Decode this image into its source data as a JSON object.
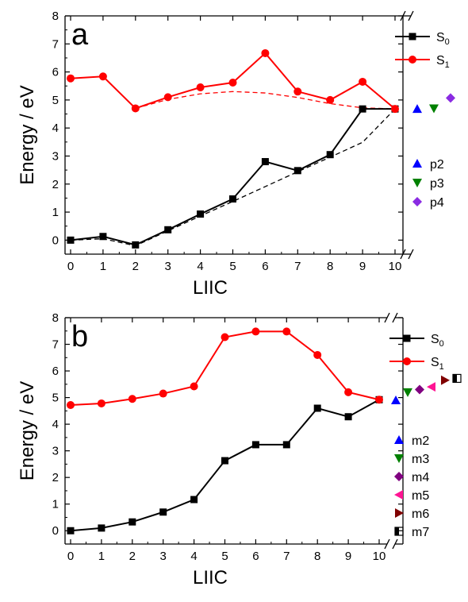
{
  "chart_data": [
    {
      "type": "line",
      "panel_label": "a",
      "xlabel": "LIIC",
      "ylabel": "Energy / eV",
      "ylim": [
        -0.5,
        8
      ],
      "xlim": [
        -0.3,
        10.3
      ],
      "x_ticks": [
        "0",
        "1",
        "2",
        "3",
        "4",
        "5",
        "6",
        "7",
        "8",
        "9",
        "10"
      ],
      "y_ticks": [
        "0",
        "1",
        "2",
        "3",
        "4",
        "5",
        "6",
        "7",
        "8"
      ],
      "axis_break": true,
      "grid": false,
      "legend_position": "top-right",
      "x": [
        0,
        1,
        2,
        3,
        4,
        5,
        6,
        7,
        8,
        9,
        10
      ],
      "series": [
        {
          "name": "S",
          "subscript": "0",
          "color": "#000000",
          "marker": "square",
          "values": [
            0.0,
            0.13,
            -0.17,
            0.37,
            0.93,
            1.47,
            2.8,
            2.48,
            3.05,
            4.68,
            4.68
          ]
        },
        {
          "name": "S",
          "subscript": "1",
          "color": "#ff0000",
          "marker": "circle",
          "values": [
            5.77,
            5.84,
            4.7,
            5.1,
            5.45,
            5.62,
            6.67,
            5.3,
            5.0,
            5.65,
            4.68
          ]
        }
      ],
      "fits": [
        {
          "color": "#000000",
          "x": [
            0,
            1,
            2,
            3,
            4,
            5,
            6,
            7,
            8,
            9,
            10
          ],
          "values": [
            0.0,
            0.05,
            -0.2,
            0.33,
            0.86,
            1.38,
            1.91,
            2.44,
            2.96,
            3.49,
            4.68
          ]
        },
        {
          "color": "#ff0000",
          "x": [
            2,
            3,
            4,
            5,
            6,
            7,
            8,
            9,
            10
          ],
          "values": [
            4.7,
            5.02,
            5.22,
            5.3,
            5.25,
            5.09,
            4.87,
            4.72,
            4.68
          ]
        }
      ],
      "extra_points": [
        {
          "name": "p2",
          "color": "#0000ff",
          "marker": "triangle-up",
          "value": 4.68
        },
        {
          "name": "p3",
          "color": "#008000",
          "marker": "triangle-down",
          "value": 4.7
        },
        {
          "name": "p4",
          "color": "#8a2be2",
          "marker": "diamond",
          "value": 5.07
        }
      ]
    },
    {
      "type": "line",
      "panel_label": "b",
      "xlabel": "LIIC",
      "ylabel": "Energy / eV",
      "ylim": [
        -0.5,
        8
      ],
      "xlim": [
        -0.1,
        10.2
      ],
      "x_ticks": [
        "0",
        "1",
        "2",
        "3",
        "4",
        "5",
        "6",
        "7",
        "8",
        "9",
        "10"
      ],
      "y_ticks": [
        "0",
        "1",
        "2",
        "3",
        "4",
        "5",
        "6",
        "7",
        "8"
      ],
      "axis_break": true,
      "grid": false,
      "legend_position": "top-right",
      "x": [
        0,
        1,
        2,
        3,
        4,
        5,
        6,
        7,
        8,
        9,
        10
      ],
      "series": [
        {
          "name": "S",
          "subscript": "0",
          "color": "#000000",
          "marker": "square",
          "values": [
            0.0,
            0.1,
            0.33,
            0.7,
            1.17,
            2.63,
            3.23,
            3.23,
            4.6,
            4.28,
            4.92
          ]
        },
        {
          "name": "S",
          "subscript": "1",
          "color": "#ff0000",
          "marker": "circle",
          "values": [
            4.72,
            4.78,
            4.95,
            5.15,
            5.42,
            7.27,
            7.48,
            7.48,
            6.6,
            5.2,
            4.92
          ]
        }
      ],
      "extra_points": [
        {
          "name": "m2",
          "color": "#0000ff",
          "marker": "triangle-up",
          "value": 4.9
        },
        {
          "name": "m3",
          "color": "#008000",
          "marker": "triangle-down",
          "value": 5.2
        },
        {
          "name": "m4",
          "color": "#800080",
          "marker": "diamond",
          "value": 5.3
        },
        {
          "name": "m5",
          "color": "#ff1493",
          "marker": "triangle-left",
          "value": 5.4
        },
        {
          "name": "m6",
          "color": "#800000",
          "marker": "triangle-right",
          "value": 5.65
        },
        {
          "name": "m7",
          "color": "#000000",
          "marker": "half-square",
          "value": 5.72
        }
      ]
    }
  ]
}
